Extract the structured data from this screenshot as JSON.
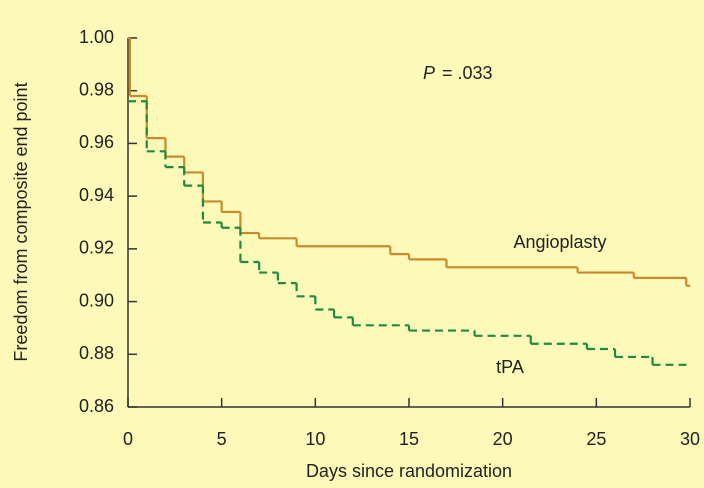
{
  "chart_data": {
    "type": "line",
    "drawstyle": "steps-post",
    "xlabel": "Days since randomization",
    "ylabel": "Freedom from composite end point",
    "annotation": {
      "italic": "P",
      "text": "= .033"
    },
    "xlim": [
      0,
      30
    ],
    "xticks": [
      0,
      5,
      10,
      15,
      20,
      25,
      30
    ],
    "ylim": [
      0.86,
      1.0
    ],
    "yticks": [
      {
        "value": 1.0,
        "label": "1.00"
      },
      0.98,
      0.96,
      0.94,
      0.92,
      {
        "value": 0.9,
        "label": "0.90"
      },
      0.88,
      0.86
    ],
    "series": [
      {
        "name": "Angioplasty",
        "color": "#c98a2b",
        "dashed": false,
        "x": [
          0,
          0.1,
          1,
          2,
          3,
          4,
          5,
          6,
          7,
          9,
          14,
          15,
          17,
          24,
          27,
          29.8
        ],
        "values": [
          1.0,
          0.978,
          0.962,
          0.955,
          0.949,
          0.938,
          0.934,
          0.926,
          0.924,
          0.921,
          0.918,
          0.916,
          0.913,
          0.911,
          0.909,
          0.906
        ]
      },
      {
        "name": "tPA",
        "color": "#1f8a3c",
        "dashed": true,
        "x": [
          0,
          1,
          2,
          3,
          4,
          5,
          6,
          7,
          8,
          9,
          10,
          11,
          12,
          15,
          18.5,
          21.5,
          24.5,
          26,
          28
        ],
        "values": [
          0.976,
          0.957,
          0.951,
          0.944,
          0.93,
          0.928,
          0.915,
          0.911,
          0.907,
          0.902,
          0.897,
          0.894,
          0.891,
          0.889,
          0.887,
          0.884,
          0.882,
          0.879,
          0.876
        ]
      }
    ]
  }
}
